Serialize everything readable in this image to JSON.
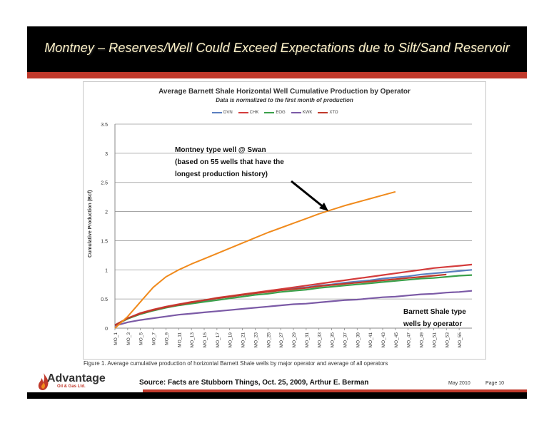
{
  "slide": {
    "title": "Montney – Reserves/Well Could Exceed Expectations due to Silt/Sand Reservoir",
    "source": "Source: Facts are Stubborn Things, Oct. 25, 2009, Arthur E. Berman",
    "date": "May  2010",
    "page": "Page 10",
    "logo_brand": "Advantage",
    "logo_sub": "Oil & Gas Ltd.",
    "caption": "Figure 1.  Average cumulative production of horizontal Barnett Shale wells by major operator and average of all operators"
  },
  "chart_data": {
    "type": "line",
    "title": "Average Barnett Shale Horizontal Well Cumulative Production by Operator",
    "subtitle": "Data is normalized to the first month of production",
    "ylabel": "Cumulative Production (Bcf)",
    "xlabel": "",
    "ylim": [
      0,
      3.5
    ],
    "yticks": [
      "0",
      "0.5",
      "1",
      "1.5",
      "2",
      "2.5",
      "3",
      "3.5"
    ],
    "xticks": [
      "MO_1",
      "MO_3",
      "MO_5",
      "MO_7",
      "MO_9",
      "MO_11",
      "MO_13",
      "MO_15",
      "MO_17",
      "MO_19",
      "MO_21",
      "MO_23",
      "MO_25",
      "MO_27",
      "MO_29",
      "MO_31",
      "MO_33",
      "MO_35",
      "MO_37",
      "MO_39",
      "MO_41",
      "MO_43",
      "MO_45",
      "MO_47",
      "MO_49",
      "MO_51",
      "MO_53",
      "MO_55"
    ],
    "grid": true,
    "legend_position": "top",
    "series": [
      {
        "name": "DVN",
        "color": "#5b7fc0",
        "x": [
          1,
          3,
          5,
          7,
          9,
          11,
          13,
          15,
          17,
          19,
          21,
          23,
          25,
          27,
          29,
          31,
          33,
          35,
          37,
          39,
          41,
          43,
          45,
          47,
          49,
          51,
          53,
          55,
          57
        ],
        "y": [
          0.05,
          0.17,
          0.25,
          0.31,
          0.36,
          0.4,
          0.44,
          0.47,
          0.51,
          0.54,
          0.57,
          0.6,
          0.63,
          0.65,
          0.68,
          0.7,
          0.73,
          0.75,
          0.78,
          0.8,
          0.82,
          0.85,
          0.87,
          0.89,
          0.92,
          0.94,
          0.96,
          0.98,
          1.0
        ]
      },
      {
        "name": "CHK",
        "color": "#d43c3c",
        "x": [
          1,
          3,
          5,
          7,
          9,
          11,
          13,
          15,
          17,
          19,
          21,
          23,
          25,
          27,
          29,
          31,
          33,
          35,
          37,
          39,
          41,
          43,
          45,
          47,
          49,
          51,
          53,
          55,
          57
        ],
        "y": [
          0.05,
          0.17,
          0.26,
          0.32,
          0.37,
          0.41,
          0.45,
          0.48,
          0.52,
          0.55,
          0.58,
          0.61,
          0.64,
          0.67,
          0.7,
          0.73,
          0.76,
          0.79,
          0.82,
          0.85,
          0.88,
          0.91,
          0.94,
          0.97,
          1.0,
          1.03,
          1.05,
          1.07,
          1.09
        ]
      },
      {
        "name": "EOG",
        "color": "#3aa04a",
        "x": [
          1,
          3,
          5,
          7,
          9,
          11,
          13,
          15,
          17,
          19,
          21,
          23,
          25,
          27,
          29,
          31,
          33,
          35,
          37,
          39,
          41,
          43,
          45,
          47,
          49,
          51,
          53,
          55,
          57
        ],
        "y": [
          0.05,
          0.16,
          0.24,
          0.3,
          0.35,
          0.39,
          0.42,
          0.45,
          0.48,
          0.51,
          0.54,
          0.57,
          0.59,
          0.62,
          0.64,
          0.66,
          0.69,
          0.71,
          0.73,
          0.75,
          0.77,
          0.79,
          0.81,
          0.83,
          0.85,
          0.86,
          0.88,
          0.9,
          0.91
        ]
      },
      {
        "name": "KWK",
        "color": "#7b5aa6",
        "x": [
          1,
          3,
          5,
          7,
          9,
          11,
          13,
          15,
          17,
          19,
          21,
          23,
          25,
          27,
          29,
          31,
          33,
          35,
          37,
          39,
          41,
          43,
          45,
          47,
          49,
          51,
          53,
          55,
          57
        ],
        "y": [
          0.04,
          0.1,
          0.14,
          0.17,
          0.2,
          0.23,
          0.25,
          0.27,
          0.29,
          0.31,
          0.33,
          0.35,
          0.37,
          0.39,
          0.41,
          0.42,
          0.44,
          0.46,
          0.48,
          0.49,
          0.51,
          0.53,
          0.54,
          0.56,
          0.58,
          0.59,
          0.61,
          0.62,
          0.64
        ]
      },
      {
        "name": "XTO",
        "color": "#c0392b",
        "x": [
          1,
          3,
          5,
          7,
          9,
          11,
          13,
          15,
          17,
          19,
          21,
          23,
          25,
          27,
          29,
          31,
          33,
          35,
          37,
          39,
          41,
          43,
          45,
          47,
          49,
          51,
          53
        ],
        "y": [
          0.05,
          0.17,
          0.25,
          0.31,
          0.36,
          0.4,
          0.44,
          0.48,
          0.51,
          0.54,
          0.57,
          0.6,
          0.62,
          0.65,
          0.67,
          0.69,
          0.72,
          0.74,
          0.76,
          0.78,
          0.8,
          0.82,
          0.84,
          0.86,
          0.88,
          0.9,
          0.92
        ]
      },
      {
        "name": "Montney type well @ Swan",
        "color": "#f08a1c",
        "x": [
          1,
          3,
          5,
          7,
          9,
          11,
          13,
          15,
          17,
          19,
          21,
          23,
          25,
          27,
          29,
          31,
          33,
          35,
          37,
          39,
          41,
          43,
          45
        ],
        "y": [
          0.0,
          0.2,
          0.45,
          0.7,
          0.88,
          1.0,
          1.1,
          1.19,
          1.28,
          1.37,
          1.46,
          1.55,
          1.64,
          1.72,
          1.8,
          1.88,
          1.96,
          2.03,
          2.1,
          2.16,
          2.22,
          2.28,
          2.34
        ]
      }
    ],
    "legend_series": [
      "DVN",
      "CHK",
      "EOG",
      "KWK",
      "XTO"
    ],
    "annotations": [
      {
        "text_lines": [
          "Montney type well @ Swan",
          "(based on 55 wells that have the",
          "longest production history)"
        ]
      },
      {
        "text_lines": [
          "Barnett Shale type",
          "wells by operator"
        ]
      }
    ]
  }
}
